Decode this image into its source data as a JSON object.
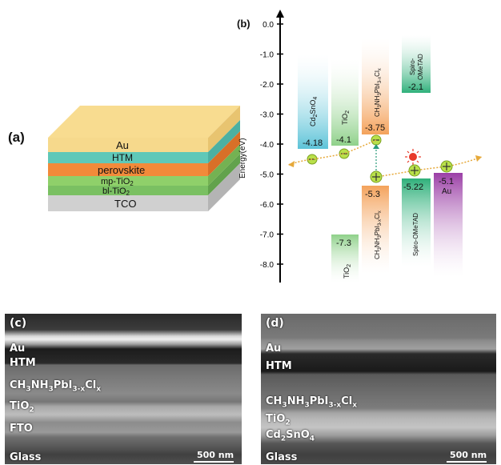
{
  "panel_a": {
    "label": "(a)",
    "layers": [
      {
        "name": "Au",
        "color": "#f6d98c"
      },
      {
        "name": "HTM",
        "color": "#5fc8b8"
      },
      {
        "name": "perovskite",
        "color": "#f28a3a"
      },
      {
        "name": "mp-TiO2",
        "color": "#8fd06a"
      },
      {
        "name": "bl-TiO2",
        "color": "#7ac062"
      },
      {
        "name": "TCO",
        "color": "#d0d0d0"
      }
    ]
  },
  "panel_b": {
    "label": "(b)",
    "ylabel": "Energy(eV)",
    "ticks": [
      "0.0",
      "-1.0",
      "-2.0",
      "-3.0",
      "-4.0",
      "-5.0",
      "-6.0",
      "-7.0",
      "-8.0"
    ],
    "bands": [
      {
        "id": "cd2sno4",
        "label": "Cd2SnO4",
        "cb": "-4.18",
        "color": "#5cc3d8"
      },
      {
        "id": "tio2",
        "label": "TiO2",
        "cb": "-4.1",
        "vb": "-7.3",
        "vb_label": "TiO2",
        "color": "#8fd18a"
      },
      {
        "id": "perov",
        "label": "CH3NH3PbI3-xClx",
        "cb": "-3.75",
        "vb": "-5.3",
        "color": "#f4a25b"
      },
      {
        "id": "spiro",
        "label": "Spiro-OMeTAD",
        "cb": "-2.1",
        "vb": "-5.22",
        "color": "#2fb07a"
      },
      {
        "id": "au",
        "label": "Au",
        "vb": "-5.1",
        "color": "#9b3fa6"
      }
    ]
  },
  "panel_c": {
    "label": "(c)",
    "layers": [
      "Au",
      "HTM",
      "CH3NH3PbI3-xClx",
      "TiO2",
      "FTO",
      "Glass"
    ],
    "scalebar": "500 nm"
  },
  "panel_d": {
    "label": "(d)",
    "layers": [
      "Au",
      "HTM",
      "CH3NH3PbI3-xClx",
      "TiO2",
      "Cd2SnO4",
      "Glass"
    ],
    "scalebar": "500 nm"
  }
}
